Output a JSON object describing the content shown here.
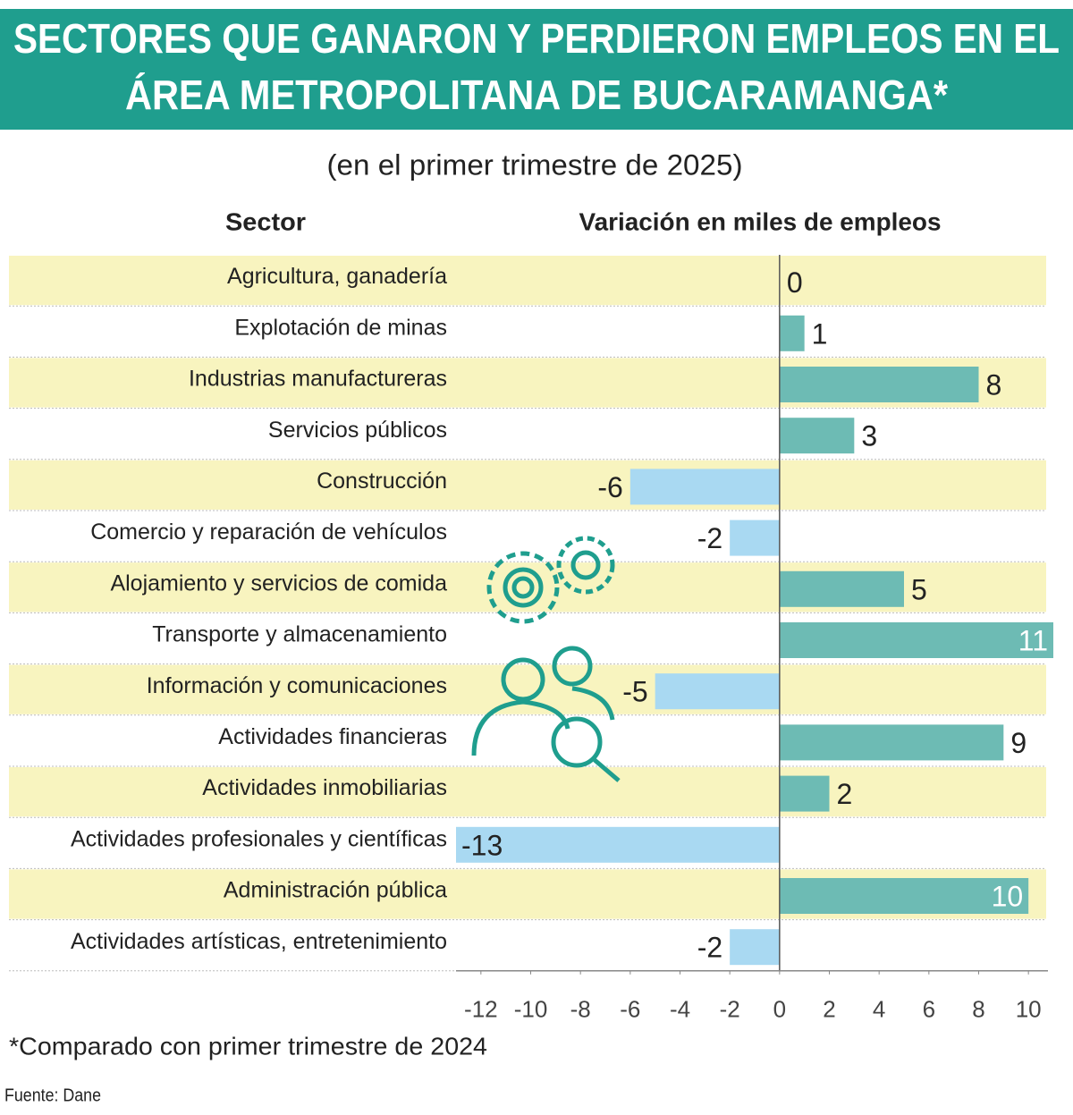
{
  "chart_data": {
    "type": "barh",
    "title": [
      "SECTORES QUE GANARON Y PERDIERON EMPLEOS EN EL",
      "ÁREA METROPOLITANA DE BUCARAMANGA*"
    ],
    "subtitle": "(en el primer trimestre de 2025)",
    "category_header": "Sector",
    "value_header": "Variación en miles de empleos",
    "categories": [
      "Agricultura, ganadería",
      "Explotación de minas",
      "Industrias manufactureras",
      "Servicios públicos",
      "Construcción",
      "Comercio y reparación de vehículos",
      "Alojamiento y servicios de comida",
      "Transporte y almacenamiento",
      "Información y comunicaciones",
      "Actividades financieras",
      "Actividades inmobiliarias",
      "Actividades profesionales y científicas",
      "Administración pública",
      "Actividades artísticas, entretenimiento"
    ],
    "values": [
      0,
      1,
      8,
      3,
      -6,
      -2,
      5,
      11,
      -5,
      9,
      2,
      -13,
      10,
      -2
    ],
    "value_labels": [
      "0",
      "1",
      "8",
      "3",
      "-6",
      "-2",
      "5",
      "11",
      "-5",
      "9",
      "2",
      "-13",
      "10",
      "-2"
    ],
    "colors": {
      "positive": "#6dbbb4",
      "negative": "#a9d9f2"
    },
    "xlim": [
      -13,
      11
    ],
    "xticks": [
      -12,
      -10,
      -8,
      -6,
      -4,
      -2,
      0,
      2,
      4,
      6,
      8,
      10
    ],
    "note": "*Comparado con primer trimestre de 2024",
    "source": "Fuente: Dane"
  }
}
